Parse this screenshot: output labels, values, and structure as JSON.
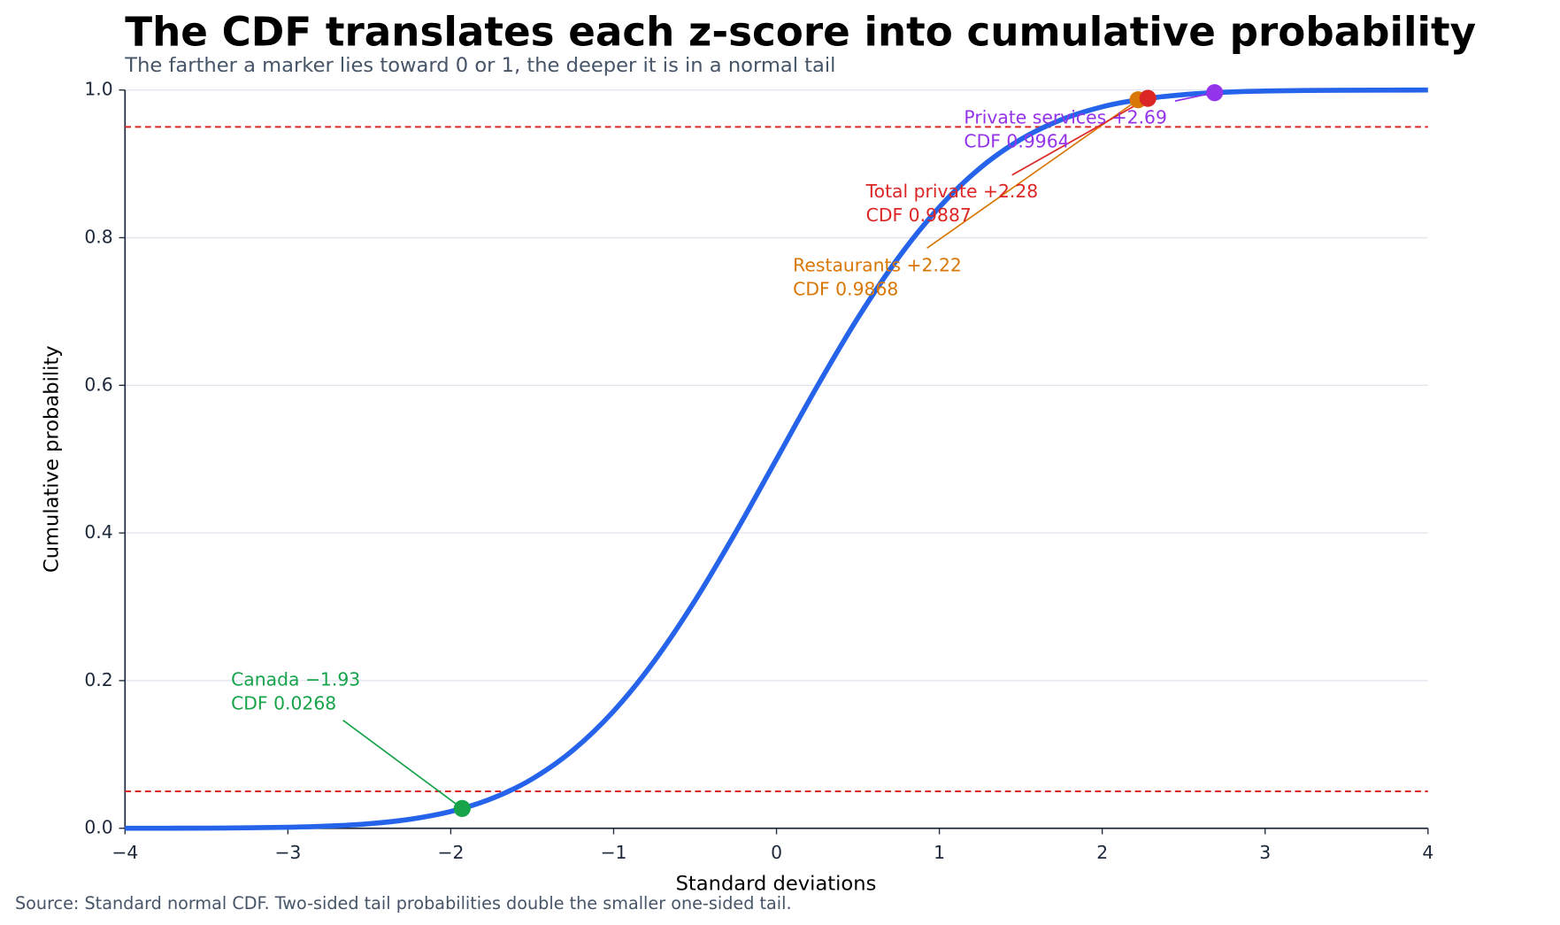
{
  "chart_data": {
    "type": "line",
    "title": "The CDF translates each z-score into cumulative probability",
    "subtitle": "The farther a marker lies toward 0 or 1, the deeper it is in a normal tail",
    "x_label": "Standard deviations",
    "y_label": "Cumulative probability",
    "source": "Source: Standard normal CDF. Two-sided tail probabilities double the smaller one-sided tail.",
    "x": [
      -4,
      -3.75,
      -3.5,
      -3.25,
      -3,
      -2.75,
      -2.5,
      -2.25,
      -2,
      -1.75,
      -1.5,
      -1.25,
      -1,
      -0.75,
      -0.5,
      -0.25,
      0,
      0.25,
      0.5,
      0.75,
      1,
      1.25,
      1.5,
      1.75,
      2,
      2.25,
      2.5,
      2.75,
      3,
      3.25,
      3.5,
      3.75,
      4
    ],
    "series": [
      {
        "color": "#2563eb",
        "values": [
          3e-05,
          9e-05,
          0.00023,
          0.00058,
          0.00135,
          0.00298,
          0.00621,
          0.01222,
          0.02275,
          0.04006,
          0.06681,
          0.10565,
          0.15866,
          0.22663,
          0.30854,
          0.40129,
          0.5,
          0.59871,
          0.69146,
          0.77337,
          0.84134,
          0.89435,
          0.93319,
          0.95994,
          0.97725,
          0.98778,
          0.99379,
          0.99702,
          0.99865,
          0.99942,
          0.99977,
          0.99991,
          0.99997
        ]
      }
    ],
    "markers": [
      {
        "label": "Canada −1.93",
        "cdf_label": "CDF 0.0268",
        "x": -1.93,
        "y": 0.0268,
        "color": "#16a34a"
      },
      {
        "label": "Restaurants +2.22",
        "cdf_label": "CDF 0.9868",
        "x": 2.22,
        "y": 0.9868,
        "color": "#d97706"
      },
      {
        "label": "Total private +2.28",
        "cdf_label": "CDF 0.9887",
        "x": 2.28,
        "y": 0.9887,
        "color": "#dc2626"
      },
      {
        "label": "Private services +2.69",
        "cdf_label": "CDF 0.9964",
        "x": 2.69,
        "y": 0.9964,
        "color": "#9333ea"
      }
    ],
    "reference_lines": [
      0.05,
      0.95
    ],
    "reference_color": "#dc2626",
    "xlim": [
      -4,
      4
    ],
    "xticks": [
      {
        "value": -4,
        "label": "−4"
      },
      {
        "value": -3,
        "label": "−3"
      },
      {
        "value": -2,
        "label": "−2"
      },
      {
        "value": -1,
        "label": "−1"
      },
      0,
      1,
      2,
      3,
      4
    ],
    "ylim": [
      0,
      1
    ],
    "yticks": [
      {
        "value": 0,
        "label": "0.0"
      },
      0.2,
      0.4,
      0.6,
      0.8,
      {
        "value": 1,
        "label": "1.0"
      }
    ],
    "grid": true
  }
}
